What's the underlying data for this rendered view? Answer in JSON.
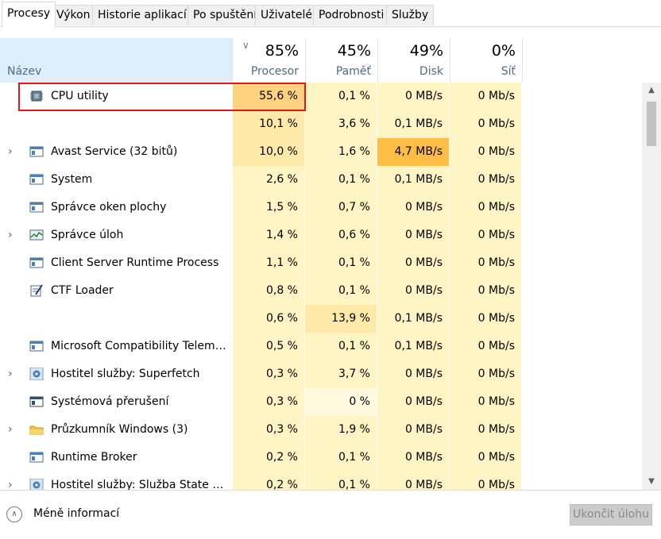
{
  "tabs": [
    "Procesy",
    "Výkon",
    "Historie aplikací",
    "Po spuštění",
    "Uživatelé",
    "Podrobnosti",
    "Služby"
  ],
  "active_tab": "Procesy",
  "header": {
    "name": "Název",
    "cpu": {
      "pct": "85%",
      "label": "Procesor"
    },
    "mem": {
      "pct": "45%",
      "label": "Paměť"
    },
    "disk": {
      "pct": "49%",
      "label": "Disk"
    },
    "net": {
      "pct": "0%",
      "label": "Síť"
    }
  },
  "colors": {
    "heat_low": "#fff4c4",
    "heat_mid": "#ffe9a8",
    "heat_high": "#ffd27f",
    "heat_top": "#ffbd45",
    "highlight_border": "#e2161b"
  },
  "processes": [
    {
      "name": "CPU utility",
      "icon": "chip-icon",
      "expand": false,
      "cpu": "55,6 %",
      "mem": "0,1 %",
      "disk": "0 MB/s",
      "net": "0 Mb/s",
      "heat": [
        "high",
        "low",
        "low",
        "low"
      ]
    },
    {
      "name": "",
      "icon": "",
      "expand": false,
      "cpu": "10,1 %",
      "mem": "3,6 %",
      "disk": "0,1 MB/s",
      "net": "0 Mb/s",
      "heat": [
        "mid",
        "low",
        "low",
        "low"
      ]
    },
    {
      "name": "Avast Service (32 bitů)",
      "icon": "window-icon",
      "expand": true,
      "cpu": "10,0 %",
      "mem": "1,6 %",
      "disk": "4,7 MB/s",
      "net": "0 Mb/s",
      "heat": [
        "mid",
        "low",
        "top",
        "low"
      ]
    },
    {
      "name": "System",
      "icon": "window-icon",
      "expand": false,
      "cpu": "2,6 %",
      "mem": "0,1 %",
      "disk": "0,1 MB/s",
      "net": "0 Mb/s",
      "heat": [
        "low",
        "low",
        "low",
        "low"
      ]
    },
    {
      "name": "Správce oken plochy",
      "icon": "window-icon",
      "expand": false,
      "cpu": "1,5 %",
      "mem": "0,7 %",
      "disk": "0 MB/s",
      "net": "0 Mb/s",
      "heat": [
        "low",
        "low",
        "low",
        "low"
      ]
    },
    {
      "name": "Správce úloh",
      "icon": "task-manager-icon",
      "expand": true,
      "cpu": "1,4 %",
      "mem": "0,6 %",
      "disk": "0 MB/s",
      "net": "0 Mb/s",
      "heat": [
        "low",
        "low",
        "low",
        "low"
      ]
    },
    {
      "name": "Client Server Runtime Process",
      "icon": "window-icon",
      "expand": false,
      "cpu": "1,1 %",
      "mem": "0,1 %",
      "disk": "0 MB/s",
      "net": "0 Mb/s",
      "heat": [
        "low",
        "low",
        "low",
        "low"
      ]
    },
    {
      "name": "CTF Loader",
      "icon": "pen-icon",
      "expand": false,
      "cpu": "0,8 %",
      "mem": "0,1 %",
      "disk": "0 MB/s",
      "net": "0 Mb/s",
      "heat": [
        "low",
        "low",
        "low",
        "low"
      ]
    },
    {
      "name": "",
      "icon": "",
      "expand": false,
      "cpu": "0,6 %",
      "mem": "13,9 %",
      "disk": "0,1 MB/s",
      "net": "0 Mb/s",
      "heat": [
        "low",
        "mid",
        "low",
        "low"
      ]
    },
    {
      "name": "Microsoft Compatibility Teleme...",
      "icon": "window-icon",
      "expand": false,
      "cpu": "0,5 %",
      "mem": "0,1 %",
      "disk": "0,1 MB/s",
      "net": "0 Mb/s",
      "heat": [
        "low",
        "low",
        "low",
        "low"
      ]
    },
    {
      "name": "Hostitel služby: Superfetch",
      "icon": "gear-icon",
      "expand": true,
      "cpu": "0,3 %",
      "mem": "3,7 %",
      "disk": "0 MB/s",
      "net": "0 Mb/s",
      "heat": [
        "low",
        "low",
        "low",
        "low"
      ]
    },
    {
      "name": "Systémová přerušení",
      "icon": "window-dark-icon",
      "expand": false,
      "cpu": "0,3 %",
      "mem": "0 %",
      "disk": "0 MB/s",
      "net": "0 Mb/s",
      "heat": [
        "low",
        "pale",
        "low",
        "low"
      ]
    },
    {
      "name": "Průzkumník Windows (3)",
      "icon": "folder-icon",
      "expand": true,
      "cpu": "0,3 %",
      "mem": "1,9 %",
      "disk": "0 MB/s",
      "net": "0 Mb/s",
      "heat": [
        "low",
        "low",
        "low",
        "low"
      ]
    },
    {
      "name": "Runtime Broker",
      "icon": "window-icon",
      "expand": false,
      "cpu": "0,2 %",
      "mem": "0,1 %",
      "disk": "0 MB/s",
      "net": "0 Mb/s",
      "heat": [
        "low",
        "low",
        "low",
        "low"
      ]
    },
    {
      "name": "Hostitel služby: Služba State Re...",
      "icon": "gear-icon",
      "expand": true,
      "cpu": "0,2 %",
      "mem": "0,1 %",
      "disk": "0 MB/s",
      "net": "0 Mb/s",
      "heat": [
        "low",
        "low",
        "low",
        "low"
      ]
    }
  ],
  "footer": {
    "less_info": "Méně informací",
    "end_task": "Ukončit úlohu"
  }
}
